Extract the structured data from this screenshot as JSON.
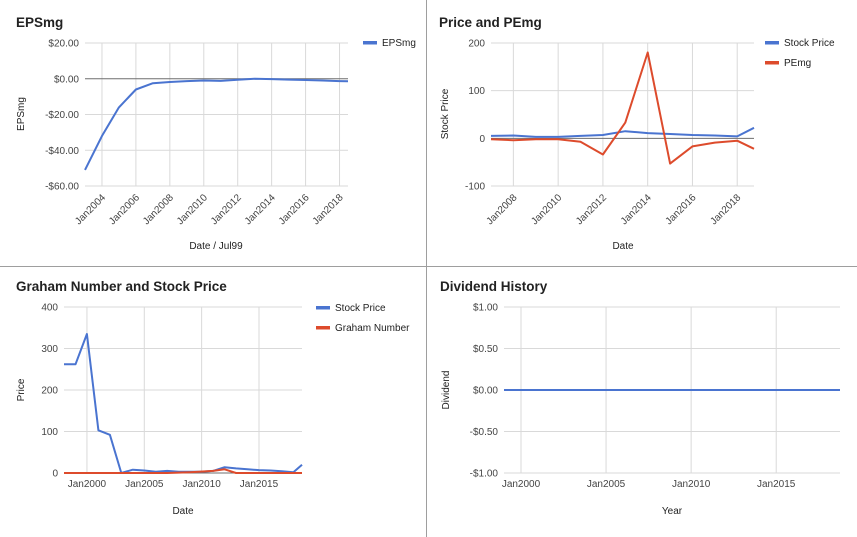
{
  "colors": {
    "blue": "#4a74d0",
    "red": "#dd4b2c",
    "grid": "#d9d9d9",
    "baseline": "#6e6e6e"
  },
  "chart_data": [
    {
      "type": "line",
      "title": "EPSmg",
      "xlabel": "Date / Jul99",
      "ylabel": "EPSmg",
      "x_ticks": [
        "Jan2004",
        "Jan2006",
        "Jan2008",
        "Jan2010",
        "Jan2012",
        "Jan2014",
        "Jan2016",
        "Jan2018"
      ],
      "x_tick_years": [
        2004,
        2006,
        2008,
        2010,
        2012,
        2014,
        2016,
        2018
      ],
      "xlim": [
        2003.0,
        2018.5
      ],
      "y_ticks": [
        20,
        0,
        -20,
        -40,
        -60
      ],
      "y_tick_labels": [
        "$20.00",
        "$0.00",
        "-$20.00",
        "-$40.00",
        "-$60.00"
      ],
      "ylim": [
        -60,
        20
      ],
      "legend": "right",
      "series": [
        {
          "name": "EPSmg",
          "color": "#4a74d0",
          "x": [
            2003.0,
            2004.0,
            2005.0,
            2006.0,
            2007.0,
            2008.0,
            2009.0,
            2010.0,
            2011.0,
            2012.0,
            2013.0,
            2014.0,
            2015.0,
            2016.0,
            2017.0,
            2018.0,
            2018.5
          ],
          "y": [
            -51,
            -32,
            -16,
            -6,
            -2.5,
            -1.8,
            -1.3,
            -1.0,
            -1.2,
            -0.6,
            0,
            -0.2,
            -0.5,
            -0.7,
            -1.0,
            -1.3,
            -1.4
          ]
        }
      ]
    },
    {
      "type": "line",
      "title": "Price and PEmg",
      "xlabel": "Date",
      "ylabel": "Stock Price",
      "x_ticks": [
        "Jan2008",
        "Jan2010",
        "Jan2012",
        "Jan2014",
        "Jan2016",
        "Jan2018"
      ],
      "x_tick_years": [
        2008,
        2010,
        2012,
        2014,
        2016,
        2018
      ],
      "xlim": [
        2007.0,
        2018.75
      ],
      "y_ticks": [
        200,
        100,
        0,
        -100
      ],
      "y_tick_labels": [
        "200",
        "100",
        "0",
        "-100"
      ],
      "ylim": [
        -100,
        200
      ],
      "legend": "right",
      "series": [
        {
          "name": "Stock Price",
          "color": "#4a74d0",
          "x": [
            2007.0,
            2008.0,
            2009.0,
            2010.0,
            2011.0,
            2012.0,
            2013.0,
            2014.0,
            2015.0,
            2016.0,
            2017.0,
            2018.0,
            2018.75
          ],
          "y": [
            5,
            6,
            3,
            3,
            5,
            7,
            15,
            11,
            9,
            7,
            6,
            4,
            22
          ]
        },
        {
          "name": "PEmg",
          "color": "#dd4b2c",
          "x": [
            2007.0,
            2008.0,
            2009.0,
            2010.0,
            2011.0,
            2012.0,
            2013.0,
            2014.0,
            2015.0,
            2016.0,
            2017.0,
            2018.0,
            2018.75
          ],
          "y": [
            -2,
            -4,
            -2,
            -2,
            -7,
            -34,
            33,
            180,
            -53,
            -17,
            -9,
            -5,
            -22
          ]
        }
      ]
    },
    {
      "type": "line",
      "title": "Graham Number and Stock Price",
      "xlabel": "Date",
      "ylabel": "Price",
      "x_ticks": [
        "Jan2000",
        "Jan2005",
        "Jan2010",
        "Jan2015"
      ],
      "x_tick_years": [
        2000,
        2005,
        2010,
        2015
      ],
      "xlim": [
        1998.0,
        2018.75
      ],
      "y_ticks": [
        400,
        300,
        200,
        100,
        0
      ],
      "y_tick_labels": [
        "400",
        "300",
        "200",
        "100",
        "0"
      ],
      "ylim": [
        0,
        400
      ],
      "legend": "right",
      "series": [
        {
          "name": "Stock Price",
          "color": "#4a74d0",
          "x": [
            1998.0,
            1999.0,
            2000.0,
            2001.0,
            2002.0,
            2003.0,
            2004.0,
            2005.0,
            2006.0,
            2007.0,
            2008.0,
            2009.0,
            2010.0,
            2011.0,
            2012.0,
            2013.0,
            2014.0,
            2015.0,
            2016.0,
            2017.0,
            2018.0,
            2018.75
          ],
          "y": [
            262,
            262,
            335,
            103,
            92,
            0,
            8,
            6,
            3,
            5,
            3,
            3,
            3,
            5,
            14,
            11,
            9,
            7,
            6,
            4,
            2,
            20
          ]
        },
        {
          "name": "Graham Number",
          "color": "#dd4b2c",
          "x": [
            1998.0,
            2007.0,
            2009.0,
            2011.0,
            2012.0,
            2013.0,
            2018.75
          ],
          "y": [
            0,
            0,
            2,
            5,
            9,
            0,
            0
          ]
        }
      ]
    },
    {
      "type": "line",
      "title": "Dividend History",
      "xlabel": "Year",
      "ylabel": "Dividend",
      "x_ticks": [
        "Jan2000",
        "Jan2005",
        "Jan2010",
        "Jan2015"
      ],
      "x_tick_years": [
        2000,
        2005,
        2010,
        2015
      ],
      "xlim": [
        1999.0,
        2018.75
      ],
      "y_ticks": [
        1,
        0.5,
        0,
        -0.5,
        -1
      ],
      "y_tick_labels": [
        "$1.00",
        "$0.50",
        "$0.00",
        "-$0.50",
        "-$1.00"
      ],
      "ylim": [
        -1,
        1
      ],
      "legend": "none",
      "series": [
        {
          "color": "#4a74d0",
          "x": [
            1999.0,
            2018.75
          ],
          "y": [
            0,
            0
          ]
        }
      ]
    }
  ]
}
